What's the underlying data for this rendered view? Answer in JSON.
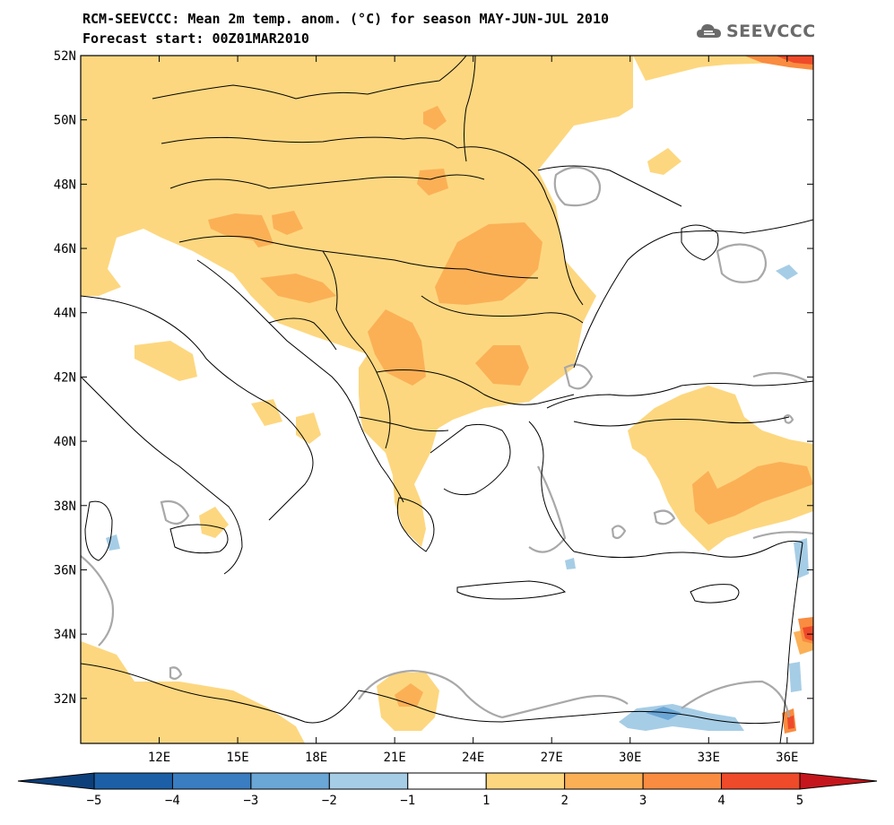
{
  "title": {
    "line1": "RCM-SEEVCCC: Mean 2m temp. anom. (°C) for season MAY-JUN-JUL 2010",
    "line2": "Forecast start: 00Z01MAR2010"
  },
  "logo": {
    "text": "SEEVCCC",
    "icon": "cloud-logo-icon"
  },
  "axes": {
    "lon_labels": [
      "12E",
      "15E",
      "18E",
      "21E",
      "24E",
      "27E",
      "30E",
      "33E",
      "36E"
    ],
    "lon_values": [
      12,
      15,
      18,
      21,
      24,
      27,
      30,
      33,
      36
    ],
    "lat_labels": [
      "52N",
      "50N",
      "48N",
      "46N",
      "44N",
      "42N",
      "40N",
      "38N",
      "36N",
      "34N",
      "32N"
    ],
    "lat_values": [
      52,
      50,
      48,
      46,
      44,
      42,
      40,
      38,
      36,
      34,
      32
    ],
    "lon_range": [
      9.0,
      37.0
    ],
    "lat_range": [
      30.6,
      52.0
    ]
  },
  "colorbar": {
    "labels": [
      "−5",
      "−4",
      "−3",
      "−2",
      "−1",
      "1",
      "2",
      "3",
      "4",
      "5"
    ],
    "bins": [
      {
        "color": "#1c5fa6"
      },
      {
        "color": "#3a7dc0"
      },
      {
        "color": "#6aa6d6"
      },
      {
        "color": "#a6cde6"
      },
      {
        "color": "#ffffff"
      },
      {
        "color": "#fdd77f"
      },
      {
        "color": "#fbb056"
      },
      {
        "color": "#f98c40"
      },
      {
        "color": "#ef4a2a"
      }
    ],
    "low_arrow_color": "#0d3f7a",
    "high_arrow_color": "#c4161c"
  },
  "field_colors": {
    "anom_1_2": "#fdd77f",
    "anom_2_3": "#fbb056",
    "anom_3_4": "#f98c40",
    "anom_4_5": "#ef4a2a",
    "anom_neg_1_2": "#a6cde6",
    "anom_neg_2_3": "#6aa6d6",
    "significance_contour": "#a8a8a8"
  }
}
